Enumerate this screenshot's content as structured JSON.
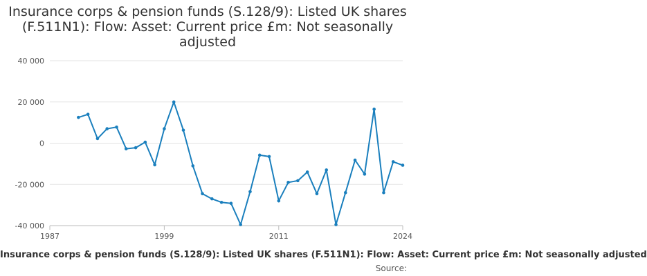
{
  "chart_data": {
    "type": "line",
    "title_lines": [
      "Insurance corps & pension funds (S.128/9): Listed UK shares",
      "(F.511N1): Flow: Asset: Current price £m: Not seasonally",
      "adjusted"
    ],
    "xlabel": "Insurance corps & pension funds (S.128/9): Listed UK shares (F.511N1): Flow: Asset: Current price £m: Not seasonally adjusted",
    "source_label": "Source:",
    "ylim": [
      -40000,
      40000
    ],
    "xlim": [
      1987,
      2024
    ],
    "y_ticks": [
      40000,
      20000,
      0,
      -20000,
      -40000
    ],
    "y_tick_labels": [
      "40 000",
      "20 000",
      "0",
      "-20 000",
      "-40 000"
    ],
    "x_ticks": [
      1987,
      1999,
      2011,
      2024
    ],
    "x_tick_labels": [
      "1987",
      "1999",
      "2011",
      "2024"
    ],
    "grid": true,
    "line_color": "#1a7fbd",
    "series": [
      {
        "x": [
          1990,
          1991,
          1992,
          1993,
          1994,
          1995,
          1996,
          1997,
          1998,
          1999,
          2000,
          2001,
          2002,
          2003,
          2004,
          2005,
          2006,
          2007,
          2008,
          2009,
          2010,
          2011,
          2012,
          2013,
          2014,
          2015,
          2016,
          2017,
          2018,
          2019,
          2020,
          2021,
          2022,
          2023,
          2024
        ],
        "values": [
          12500,
          14000,
          2200,
          7000,
          7800,
          -2700,
          -2200,
          500,
          -10500,
          7000,
          20000,
          6300,
          -11000,
          -24500,
          -27000,
          -28700,
          -29200,
          -39500,
          -23500,
          -5800,
          -6500,
          -28000,
          -19000,
          -18200,
          -14000,
          -24500,
          -13000,
          -39500,
          -24000,
          -8200,
          -15000,
          16500,
          -24000,
          -9000,
          -10700
        ]
      }
    ]
  }
}
